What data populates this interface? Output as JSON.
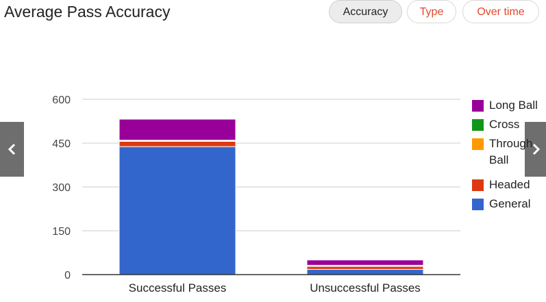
{
  "header": {
    "title": "Average Pass Accuracy",
    "tabs": [
      {
        "label": "Accuracy",
        "active": true
      },
      {
        "label": "Type",
        "active": false
      },
      {
        "label": "Over time",
        "active": false
      }
    ]
  },
  "nav": {
    "prev_icon": "chevron-left-icon",
    "next_icon": "chevron-right-icon"
  },
  "colors": {
    "Long Ball": "#990099",
    "Cross": "#109618",
    "Through Ball": "#ff9900",
    "Headed": "#dc3912",
    "General": "#3366cc",
    "inactive_tab_text": "#e0482b"
  },
  "chart_data": {
    "type": "bar",
    "stacked": true,
    "categories": [
      "Successful Passes",
      "Unsuccessful Passes"
    ],
    "series": [
      {
        "name": "General",
        "values": [
          438,
          18
        ]
      },
      {
        "name": "Headed",
        "values": [
          18,
          10
        ]
      },
      {
        "name": "Through Ball",
        "values": [
          2,
          1
        ]
      },
      {
        "name": "Cross",
        "values": [
          2,
          3
        ]
      },
      {
        "name": "Long Ball",
        "values": [
          72,
          18
        ]
      }
    ],
    "legend_order": [
      "Long Ball",
      "Cross",
      "Through Ball",
      "Headed",
      "General"
    ],
    "legend_position": "right",
    "y_ticks": [
      0,
      150,
      300,
      450,
      600
    ],
    "ylim": [
      0,
      600
    ],
    "grid": true,
    "title": "",
    "xlabel": "",
    "ylabel": ""
  }
}
